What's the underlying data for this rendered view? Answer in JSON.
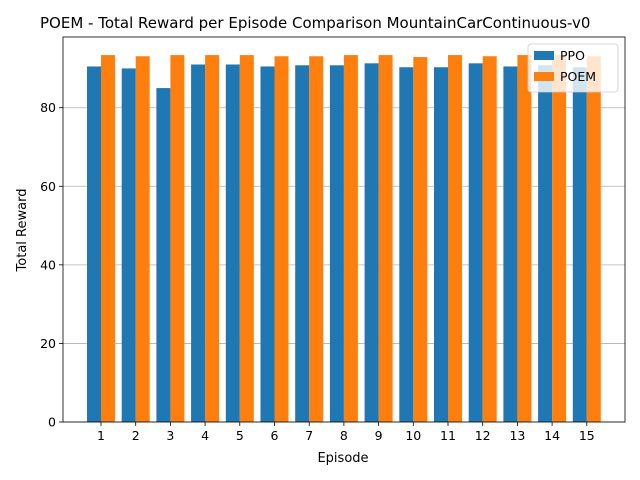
{
  "chart_data": {
    "type": "bar",
    "title": "POEM - Total Reward per Episode Comparison MountainCarContinuous-v0",
    "xlabel": "Episode",
    "ylabel": "Total Reward",
    "categories": [
      "1",
      "2",
      "3",
      "4",
      "5",
      "6",
      "7",
      "8",
      "9",
      "10",
      "11",
      "12",
      "13",
      "14",
      "15"
    ],
    "series": [
      {
        "name": "PPO",
        "color": "#1f77b4",
        "values": [
          90.5,
          90.0,
          85.0,
          91.0,
          91.0,
          90.5,
          90.8,
          90.8,
          91.3,
          90.3,
          90.3,
          91.3,
          90.5,
          90.8,
          90.3
        ]
      },
      {
        "name": "POEM",
        "color": "#ff7f0e",
        "values": [
          93.4,
          93.1,
          93.4,
          93.4,
          93.4,
          93.1,
          93.1,
          93.4,
          93.4,
          92.9,
          93.4,
          93.1,
          93.4,
          93.4,
          93.1
        ]
      }
    ],
    "ylim": [
      0,
      98
    ],
    "yticks": [
      0,
      20,
      40,
      60,
      80
    ],
    "grid": "y",
    "legend": "top-right"
  }
}
